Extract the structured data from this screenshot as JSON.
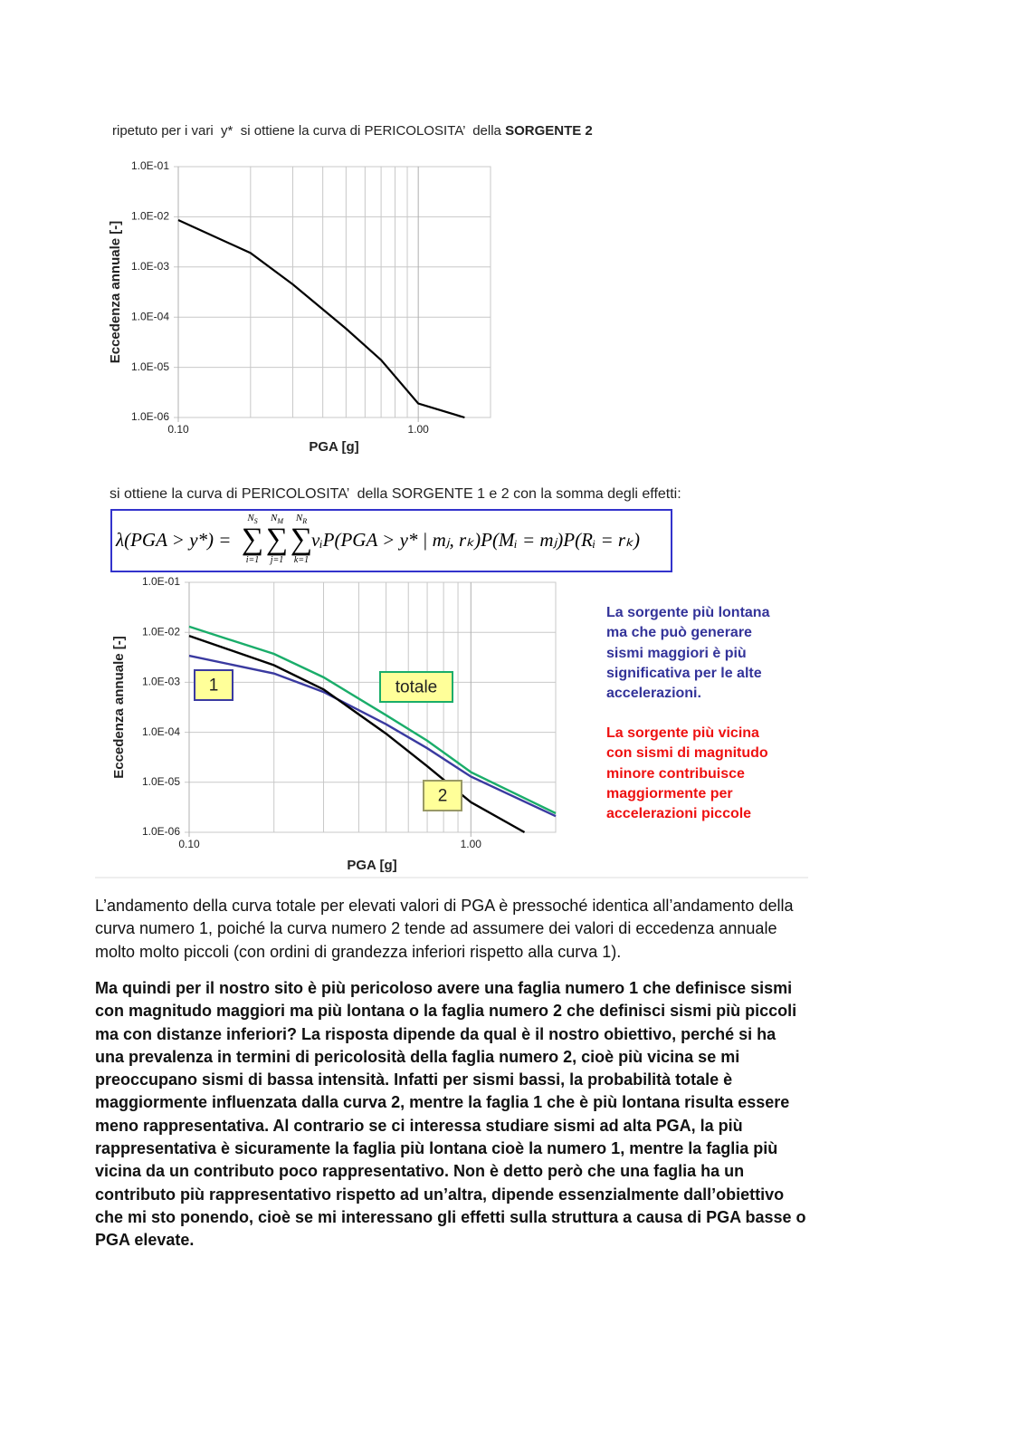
{
  "intro_1": {
    "text": "ripetuto per i vari  y*  si ottiene la curva di PERICOLOSITA’  della ",
    "bold": "SORGENTE 2"
  },
  "intro_2": "si ottiene la curva di PERICOLOSITA’  della SORGENTE 1 e 2 con la somma degli effetti:",
  "formula": {
    "lhs": "λ(PGA > y*) =",
    "sums": [
      {
        "upper": "N",
        "sub": "S",
        "lower": "i=1"
      },
      {
        "upper": "N",
        "sub": "M",
        "lower": "j=1"
      },
      {
        "upper": "N",
        "sub": "R",
        "lower": "k=1"
      }
    ],
    "rhs": "vᵢP(PGA > y* | mⱼ, rₖ)P(Mᵢ = mⱼ)P(Rᵢ = rₖ)"
  },
  "chart_data": [
    {
      "type": "line",
      "x_label": "PGA [g]",
      "y_label": "Eccedenza annuale [-]",
      "log_x": true,
      "log_y": true,
      "grid": true,
      "xlim": [
        0.1,
        2
      ],
      "ylim": [
        1e-06,
        0.1
      ],
      "xticks": [
        {
          "value": 0.1,
          "label": "0.10"
        },
        {
          "value": 1,
          "label": "1.00"
        }
      ],
      "x_minor_grid": [
        0.2,
        0.3,
        0.4,
        0.5,
        0.6,
        0.7,
        0.8,
        0.9,
        2
      ],
      "yticks": [
        {
          "value": 0.1,
          "label": "1.0E-01"
        },
        {
          "value": 0.01,
          "label": "1.0E-02"
        },
        {
          "value": 0.001,
          "label": "1.0E-03"
        },
        {
          "value": 0.0001,
          "label": "1.0E-04"
        },
        {
          "value": 1e-05,
          "label": "1.0E-05"
        },
        {
          "value": 1e-06,
          "label": "1.0E-06"
        }
      ],
      "series": [
        {
          "color": "#000000",
          "x": [
            0.1,
            0.2,
            0.3,
            0.5,
            0.7,
            1.0,
            1.56
          ],
          "values": [
            0.0086,
            0.0019,
            0.00045,
            5.9e-05,
            1.4e-05,
            1.9e-06,
            1e-06
          ]
        }
      ]
    },
    {
      "type": "line",
      "x_label": "PGA [g]",
      "y_label": "Eccedenza annuale [-]",
      "log_x": true,
      "log_y": true,
      "grid": true,
      "xlim": [
        0.1,
        2
      ],
      "ylim": [
        1e-06,
        0.1
      ],
      "xticks": [
        {
          "value": 0.1,
          "label": "0.10"
        },
        {
          "value": 1,
          "label": "1.00"
        }
      ],
      "x_minor_grid": [
        0.2,
        0.3,
        0.4,
        0.5,
        0.6,
        0.7,
        0.8,
        0.9,
        2
      ],
      "yticks": [
        {
          "value": 0.1,
          "label": "1.0E-01"
        },
        {
          "value": 0.01,
          "label": "1.0E-02"
        },
        {
          "value": 0.001,
          "label": "1.0E-03"
        },
        {
          "value": 0.0001,
          "label": "1.0E-04"
        },
        {
          "value": 1e-05,
          "label": "1.0E-05"
        },
        {
          "value": 1e-06,
          "label": "1.0E-06"
        }
      ],
      "series": [
        {
          "name": "1",
          "color": "#3a3aa0",
          "box_border": "#3a3aa0",
          "x": [
            0.1,
            0.2,
            0.3,
            0.5,
            0.7,
            1.0,
            2
          ],
          "values": [
            0.0034,
            0.0015,
            0.00064,
            0.000145,
            4.8e-05,
            1.3e-05,
            2.1e-06
          ]
        },
        {
          "name": "totale",
          "color": "#1aad6a",
          "box_border": "#1aad6a",
          "x": [
            0.1,
            0.2,
            0.3,
            0.5,
            0.7,
            1.0,
            2
          ],
          "values": [
            0.013,
            0.0037,
            0.00126,
            0.00022,
            6.8e-05,
            1.6e-05,
            2.4e-06
          ]
        },
        {
          "name": "2",
          "color": "#000000",
          "box_border": "#999966",
          "x": [
            0.1,
            0.2,
            0.3,
            0.5,
            0.7,
            1.0,
            1.55
          ],
          "values": [
            0.0085,
            0.0022,
            0.00072,
            9.4e-05,
            2.1e-05,
            4e-06,
            1e-06
          ]
        }
      ]
    }
  ],
  "note_blue": [
    "La sorgente più lontana",
    "ma che può generare",
    "sismi maggiori è più",
    "significativa per le alte",
    "accelerazioni."
  ],
  "note_red": [
    "La sorgente più vicina",
    "con sismi di magnitudo",
    "minore contribuisce",
    "maggiormente per",
    "accelerazioni piccole"
  ],
  "paragraph_1": [
    "L’andamento della curva totale per elevati valori di PGA è pressoché identica all’andamento della",
    "curva numero 1, poiché la curva numero 2 tende ad assumere dei valori di eccedenza annuale",
    "molto molto piccoli (con ordini di grandezza inferiori rispetto alla curva 1)."
  ],
  "paragraph_2": [
    "Ma quindi per il nostro sito è più pericoloso avere una faglia numero 1 che definisce sismi",
    "con magnitudo maggiori ma più lontana o la faglia numero 2 che definisci sismi più piccoli",
    "ma con distanze inferiori? La risposta dipende da qual è il nostro obiettivo, perché si ha",
    "una prevalenza in termini di pericolosità della faglia numero 2, cioè più vicina se mi",
    "preoccupano sismi di bassa intensità. Infatti per sismi bassi, la probabilità totale è",
    "maggiormente influenzata dalla curva 2, mentre la faglia 1 che è più lontana risulta essere",
    "meno rappresentativa. Al contrario se ci interessa studiare sismi ad alta PGA, la più",
    "rappresentativa è sicuramente la faglia più lontana cioè la numero 1, mentre la faglia più",
    "vicina da un contributo poco rappresentativo. Non è detto però che una faglia ha un",
    "contributo più rappresentativo rispetto ad un’altra, dipende essenzialmente dall’obiettivo",
    "che mi sto ponendo, cioè se mi interessano gli effetti sulla struttura a causa di PGA basse o",
    "PGA elevate."
  ]
}
